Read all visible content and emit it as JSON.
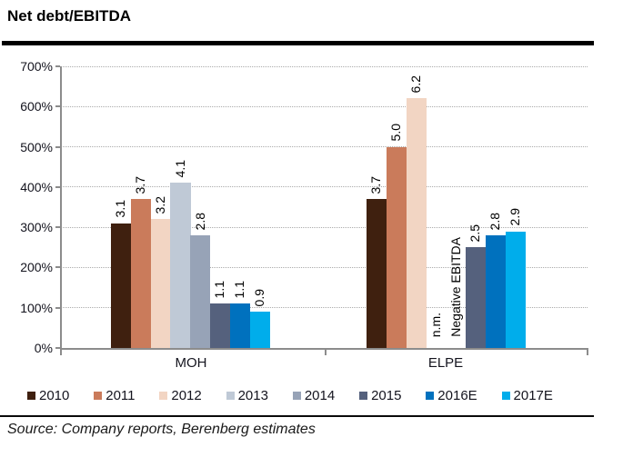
{
  "header": {
    "title": "Net debt/EBITDA"
  },
  "footer": {
    "source": "Source: Company reports, Berenberg estimates"
  },
  "chart_data": {
    "type": "bar",
    "title": "Net debt/EBITDA",
    "categories": [
      "MOH",
      "ELPE"
    ],
    "series": [
      {
        "name": "2010",
        "color": "#3F200F",
        "values": [
          3.1,
          3.7
        ],
        "labels": [
          "3.1",
          "3.7"
        ]
      },
      {
        "name": "2011",
        "color": "#CA7B5B",
        "values": [
          3.7,
          5.0
        ],
        "labels": [
          "3.7",
          "5.0"
        ]
      },
      {
        "name": "2012",
        "color": "#F2D5C3",
        "values": [
          3.2,
          6.2
        ],
        "labels": [
          "3.2",
          "6.2"
        ]
      },
      {
        "name": "2013",
        "color": "#BFC9D6",
        "values": [
          4.1,
          null
        ],
        "labels": [
          "4.1",
          "n.m."
        ]
      },
      {
        "name": "2014",
        "color": "#97A3B7",
        "values": [
          2.8,
          null
        ],
        "labels": [
          "2.8",
          "Negative EBITDA"
        ]
      },
      {
        "name": "2015",
        "color": "#55617D",
        "values": [
          1.1,
          2.5
        ],
        "labels": [
          "1.1",
          "2.5"
        ]
      },
      {
        "name": "2016E",
        "color": "#0071BE",
        "values": [
          1.1,
          2.8
        ],
        "labels": [
          "1.1",
          "2.8"
        ]
      },
      {
        "name": "2017E",
        "color": "#00ADEB",
        "values": [
          0.9,
          2.9
        ],
        "labels": [
          "0.9",
          "2.9"
        ]
      }
    ],
    "yticks": [
      "0%",
      "100%",
      "200%",
      "300%",
      "400%",
      "500%",
      "600%",
      "700%"
    ],
    "ylim": [
      0,
      700
    ],
    "unit": "percent",
    "value_to_percent_multiplier": 100,
    "grid": "dotted-horizontal",
    "legend_position": "bottom",
    "colors": {
      "axis": "#8C8C8C",
      "gridline": "#ABABAB",
      "text": "#14141E"
    }
  }
}
